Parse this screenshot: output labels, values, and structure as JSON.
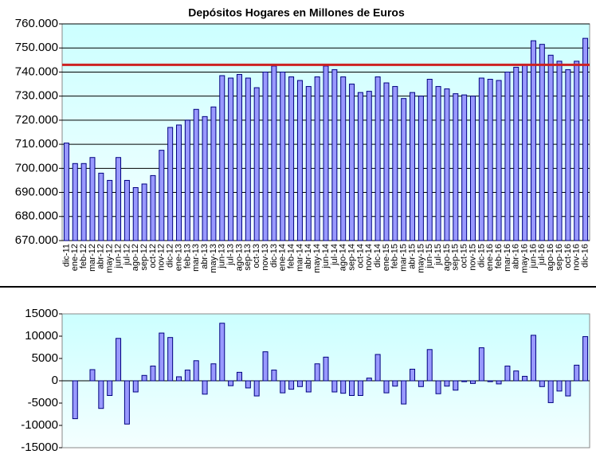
{
  "chart_data": [
    {
      "type": "bar",
      "title": "Depósitos Hogares en Millones de Euros",
      "categories": [
        "dic-11",
        "ene-12",
        "feb-12",
        "mar-12",
        "abr-12",
        "may-12",
        "jun-12",
        "jul-12",
        "ago-12",
        "sep-12",
        "oct-12",
        "nov-12",
        "dic-12",
        "ene-13",
        "feb-13",
        "mar-13",
        "abr-13",
        "may-13",
        "jun-13",
        "jul-13",
        "ago-13",
        "sep-13",
        "oct-13",
        "nov-13",
        "dic-13",
        "ene-14",
        "feb-14",
        "mar-14",
        "abr-14",
        "may-14",
        "jun-14",
        "jul-14",
        "ago-14",
        "sep-14",
        "oct-14",
        "nov-14",
        "dic-14",
        "ene-15",
        "feb-15",
        "mar-15",
        "abr-15",
        "may-15",
        "jun-15",
        "jul-15",
        "ago-15",
        "sep-15",
        "oct-15",
        "nov-15",
        "dic-15",
        "ene-16",
        "feb-16",
        "mar-16",
        "abr-16",
        "may-16",
        "jun-16",
        "jul-16",
        "ago-16",
        "sep-16",
        "oct-16",
        "nov-16",
        "dic-16"
      ],
      "values": [
        710500,
        702000,
        702000,
        704500,
        698000,
        695000,
        704500,
        695000,
        692000,
        693500,
        697000,
        707500,
        717000,
        718000,
        720000,
        724500,
        721500,
        725500,
        738500,
        737500,
        739000,
        737500,
        733500,
        740000,
        742500,
        740000,
        738000,
        736500,
        734000,
        738000,
        742500,
        741000,
        738000,
        735000,
        731500,
        732000,
        738000,
        735500,
        734000,
        729000,
        731500,
        730000,
        737000,
        734000,
        733000,
        731000,
        730500,
        730000,
        737500,
        737000,
        736500,
        740000,
        742000,
        743000,
        753000,
        751500,
        747000,
        744500,
        741000,
        744500,
        754000
      ],
      "color": "#9999ff",
      "reference_line": 743000,
      "reference_color": "#cc2222",
      "ylim": [
        670000,
        760000
      ],
      "yticks": [
        {
          "value": 670000,
          "label": "670.000"
        },
        {
          "value": 680000,
          "label": "680.000"
        },
        {
          "value": 690000,
          "label": "690.000"
        },
        {
          "value": 700000,
          "label": "700.000"
        },
        {
          "value": 710000,
          "label": "710.000"
        },
        {
          "value": 720000,
          "label": "720.000"
        },
        {
          "value": 730000,
          "label": "730.000"
        },
        {
          "value": 740000,
          "label": "740.000"
        },
        {
          "value": 750000,
          "label": "750.000"
        },
        {
          "value": 760000,
          "label": "760.000"
        }
      ],
      "grid": true
    },
    {
      "type": "bar",
      "values": [
        null,
        -8500,
        0,
        2500,
        -6200,
        -3300,
        9500,
        -9700,
        -2500,
        1200,
        3300,
        10700,
        9700,
        900,
        2400,
        4500,
        -3000,
        3800,
        12900,
        -1100,
        1900,
        -1600,
        -3400,
        6500,
        2400,
        -2700,
        -1900,
        -1300,
        -2500,
        3800,
        5300,
        -2500,
        -2800,
        -3300,
        -3300,
        600,
        5900,
        -2700,
        -1200,
        -5200,
        2600,
        -1300,
        7000,
        -2900,
        -1200,
        -2100,
        -200,
        -600,
        7400,
        -200,
        -700,
        3300,
        2200,
        1000,
        10200,
        -1300,
        -4900,
        -2300,
        -3400,
        3500,
        9900
      ],
      "color": "#9999ff",
      "ylim": [
        -15000,
        15000
      ],
      "yticks": [
        -15000,
        -10000,
        -5000,
        0,
        5000,
        10000,
        15000
      ],
      "grid": false
    }
  ]
}
